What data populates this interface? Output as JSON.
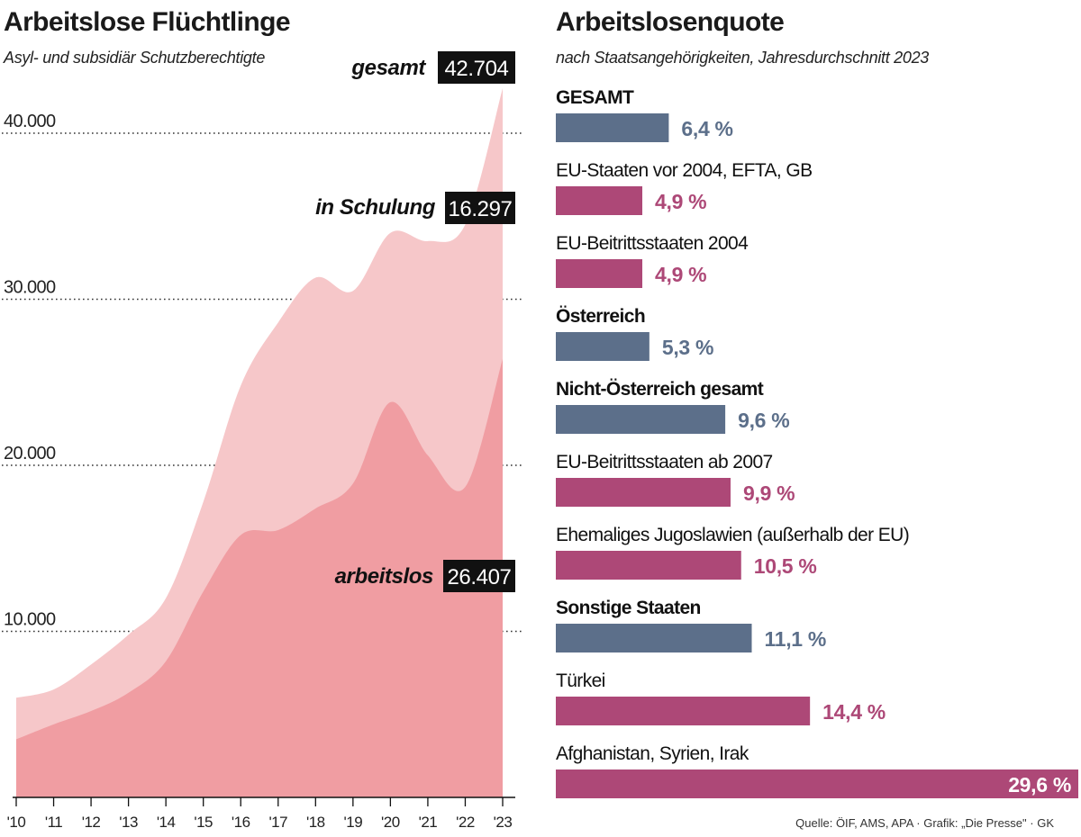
{
  "left_chart": {
    "title": "Arbeitslose Flüchtlinge",
    "subtitle": "Asyl- und subsidiär Schutzberechtigte",
    "callouts": {
      "gesamt_label": "gesamt",
      "gesamt_value": "42.704",
      "schulung_label": "in Schulung",
      "schulung_value": "16.297",
      "arbeitslos_label": "arbeitslos",
      "arbeitslos_value": "26.407"
    }
  },
  "right_chart": {
    "title": "Arbeitslosenquote",
    "subtitle": "nach Staatsangehörigkeiten, Jahresdurchschnitt 2023"
  },
  "colors": {
    "gesamt_area": "#f6c7c9",
    "arbeitslos_area": "#f09da2",
    "bar_slate": "#5c6f8a",
    "bar_magenta": "#ad4877",
    "value_slate": "#5c6f8a",
    "value_magenta": "#ad4877"
  },
  "chart_data": [
    {
      "type": "area",
      "title": "Arbeitslose Flüchtlinge",
      "subtitle": "Asyl- und subsidiär Schutzberechtigte",
      "x": [
        2010,
        2011,
        2012,
        2013,
        2014,
        2015,
        2016,
        2017,
        2018,
        2019,
        2020,
        2021,
        2022,
        2023
      ],
      "tick_labels": [
        "'10",
        "'11",
        "'12",
        "'13",
        "'14",
        "'15",
        "'16",
        "'17",
        "'18",
        "'19",
        "'20",
        "'21",
        "'22",
        "'23"
      ],
      "series": [
        {
          "name": "gesamt",
          "values": [
            6000,
            6500,
            8000,
            9800,
            12000,
            17800,
            24800,
            28600,
            31300,
            30500,
            34000,
            33500,
            34500,
            42704
          ]
        },
        {
          "name": "arbeitslos",
          "values": [
            3500,
            4400,
            5200,
            6300,
            8200,
            12400,
            15800,
            16100,
            17400,
            18900,
            23800,
            20600,
            18700,
            26407
          ]
        }
      ],
      "yticks": [
        10000,
        20000,
        30000,
        40000
      ],
      "ytick_labels": [
        "10.000",
        "20.000",
        "30.000",
        "40.000"
      ],
      "ylim": [
        0,
        44000
      ],
      "grid": "dotted horizontal"
    },
    {
      "type": "bar",
      "orientation": "horizontal",
      "title": "Arbeitslosenquote",
      "subtitle": "nach Staatsangehörigkeiten, Jahresdurchschnitt 2023",
      "bars": [
        {
          "label": "GESAMT",
          "value": 6.4,
          "display": "6,4 %",
          "group": "summary"
        },
        {
          "label": "EU-Staaten vor 2004, EFTA, GB",
          "value": 4.9,
          "display": "4,9 %",
          "group": "detail"
        },
        {
          "label": "EU-Beitrittsstaaten 2004",
          "value": 4.9,
          "display": "4,9 %",
          "group": "detail"
        },
        {
          "label": "Österreich",
          "value": 5.3,
          "display": "5,3 %",
          "group": "summary"
        },
        {
          "label": "Nicht-Österreich gesamt",
          "value": 9.6,
          "display": "9,6 %",
          "group": "summary"
        },
        {
          "label": "EU-Beitrittsstaaten ab 2007",
          "value": 9.9,
          "display": "9,9 %",
          "group": "detail"
        },
        {
          "label": "Ehemaliges Jugoslawien (außerhalb der EU)",
          "value": 10.5,
          "display": "10,5 %",
          "group": "detail"
        },
        {
          "label": "Sonstige Staaten",
          "value": 11.1,
          "display": "11,1 %",
          "group": "summary"
        },
        {
          "label": "Türkei",
          "value": 14.4,
          "display": "14,4 %",
          "group": "detail"
        },
        {
          "label": "Afghanistan, Syrien, Irak",
          "value": 29.6,
          "display": "29,6 %",
          "group": "detail"
        }
      ],
      "xlim": [
        0,
        29.6
      ]
    }
  ],
  "source": "Quelle: ÖIF, AMS, APA · Grafik: „Die Presse\" · GK"
}
